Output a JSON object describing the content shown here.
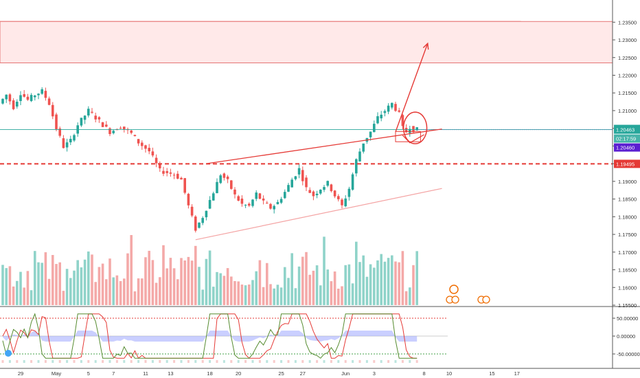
{
  "chart_data": {
    "type": "candlestick",
    "price_axis": {
      "ticks": [
        "1.23500",
        "1.23000",
        "1.22500",
        "1.22000",
        "1.21500",
        "1.21000",
        "1.20500",
        "1.20000",
        "1.19500",
        "1.19000",
        "1.18500",
        "1.18000",
        "1.17500",
        "1.17000",
        "1.16500",
        "1.16000",
        "1.15500"
      ],
      "range": [
        1.155,
        1.237
      ]
    },
    "time_axis": {
      "labels": [
        {
          "label": "29",
          "index": 0
        },
        {
          "label": "May",
          "index": 10
        },
        {
          "label": "5",
          "index": 19
        },
        {
          "label": "7",
          "index": 26
        },
        {
          "label": "11",
          "index": 35
        },
        {
          "label": "13",
          "index": 42
        },
        {
          "label": "18",
          "index": 53
        },
        {
          "label": "20",
          "index": 61
        },
        {
          "label": "25",
          "index": 73
        },
        {
          "label": "27",
          "index": 79
        },
        {
          "label": "Jun",
          "index": 91
        },
        {
          "label": "3",
          "index": 99
        },
        {
          "label": "8",
          "index": 113
        },
        {
          "label": "10",
          "index": 120
        },
        {
          "label": "15",
          "index": 132
        },
        {
          "label": "17",
          "index": 139
        }
      ]
    },
    "badges": {
      "current_price": "1.20463",
      "countdown": "02:17:59",
      "marker_price": "1.20460",
      "level_price": "1.19495"
    },
    "levels": {
      "current": 1.20463,
      "support": 1.19495
    },
    "zones": [
      {
        "from": 1.2306,
        "to": 1.2352,
        "kind": "resistance-strong"
      },
      {
        "from": 1.2235,
        "to": 1.2352,
        "kind": "resistance-light"
      }
    ],
    "trendlines": [
      {
        "from": {
          "index": 54,
          "price": 1.1735
        },
        "to": {
          "index": 123,
          "price": 1.188
        }
      },
      {
        "from": {
          "index": 57,
          "price": 1.195
        },
        "to": {
          "index": 123,
          "price": 1.2048
        }
      }
    ],
    "projection": {
      "from": {
        "index": 110,
        "price": 1.204
      },
      "to": {
        "index": 119,
        "price": 1.229
      }
    },
    "candles": [],
    "oscillator": {
      "ticks": [
        "50.00000",
        "0.00000",
        "-50.00000"
      ],
      "range": [
        -75,
        75
      ],
      "upper_band": 50,
      "lower_band": -50
    },
    "colors": {
      "up": "#26a69a",
      "down": "#ef5350",
      "volume_up": "#8fd3c9",
      "volume_down": "#f4a9a8",
      "annotation": "#e53935",
      "current_badge": "#26a69a",
      "marker_badge": "#5b1fd1",
      "osc_band": "#9fa8ff"
    }
  }
}
